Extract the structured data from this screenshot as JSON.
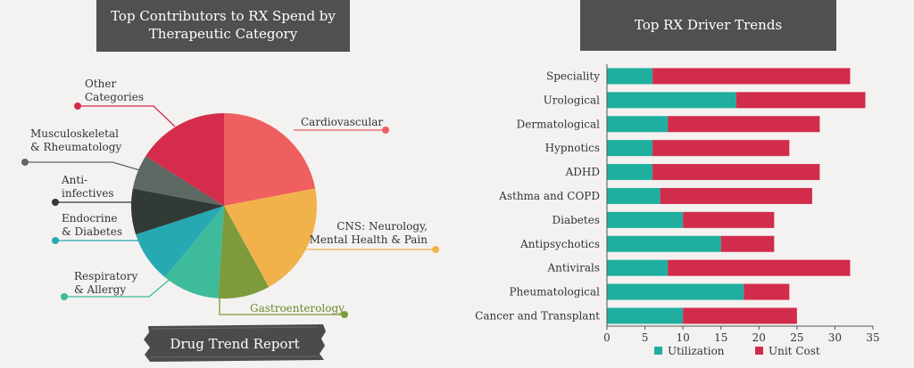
{
  "left_title": {
    "line1": "Top Contributors to RX Spend by",
    "line2": "Therapeutic Category"
  },
  "right_title": "Top RX Driver Trends",
  "footer_badge": "Drug Trend Report",
  "colors": {
    "cardiovascular": "#ef5f5f",
    "cns": "#f2b24b",
    "gastro": "#7d9a3c",
    "respiratory": "#3dbb9a",
    "endocrine": "#26a9b3",
    "anti_infectives": "#323a36",
    "musculoskeletal": "#5e6862",
    "other": "#d42c4a",
    "utilization": "#1faea0",
    "unit_cost": "#d22c4c"
  },
  "chart_data": [
    {
      "type": "pie",
      "title": "Top Contributors to RX Spend by Therapeutic Category",
      "slices": [
        {
          "label": "Cardiovascular",
          "value": 22,
          "color": "#ef5f5f",
          "label_lines": [
            "Cardiovascular"
          ]
        },
        {
          "label": "CNS: Neurology, Mental Health & Pain",
          "value": 20,
          "color": "#f2b24b",
          "label_lines": [
            "CNS: Neurology,",
            "Mental Health & Pain"
          ]
        },
        {
          "label": "Gastroenterology",
          "value": 9,
          "color": "#7d9a3c",
          "label_lines": [
            "Gastroenterology"
          ]
        },
        {
          "label": "Respiratory & Allergy",
          "value": 10,
          "color": "#3dbb9a",
          "label_lines": [
            "Respiratory",
            "& Allergy"
          ]
        },
        {
          "label": "Endocrine & Diabetes",
          "value": 9,
          "color": "#26a9b3",
          "label_lines": [
            "Endocrine",
            "& Diabetes"
          ]
        },
        {
          "label": "Anti-infectives",
          "value": 8,
          "color": "#323a36",
          "label_lines": [
            "Anti-",
            "infectives"
          ]
        },
        {
          "label": "Musculoskeletal & Rheumatology",
          "value": 6,
          "color": "#5e6862",
          "label_lines": [
            "Musculoskeletal",
            "& Rheumatology"
          ]
        },
        {
          "label": "Other Categories",
          "value": 16,
          "color": "#d42c4a",
          "label_lines": [
            "Other",
            "Categories"
          ]
        }
      ]
    },
    {
      "type": "bar",
      "orientation": "horizontal",
      "stacked": true,
      "title": "Top RX Driver Trends",
      "categories": [
        "Speciality",
        "Urological",
        "Dermatological",
        "Hypnotics",
        "ADHD",
        "Asthma and COPD",
        "Diabetes",
        "Antipsychotics",
        "Antivirals",
        "Pheumatological",
        "Cancer and Transplant"
      ],
      "series": [
        {
          "name": "Utilization",
          "color": "#1faea0",
          "values": [
            6,
            17,
            8,
            6,
            6,
            7,
            10,
            15,
            8,
            18,
            10
          ]
        },
        {
          "name": "Unit Cost",
          "color": "#d22c4c",
          "values": [
            26,
            17,
            20,
            18,
            22,
            20,
            12,
            7,
            24,
            6,
            15
          ]
        }
      ],
      "xlim": [
        0,
        35
      ],
      "xticks": [
        0,
        5,
        10,
        15,
        20,
        25,
        30,
        35
      ],
      "legend": "bottom"
    }
  ]
}
